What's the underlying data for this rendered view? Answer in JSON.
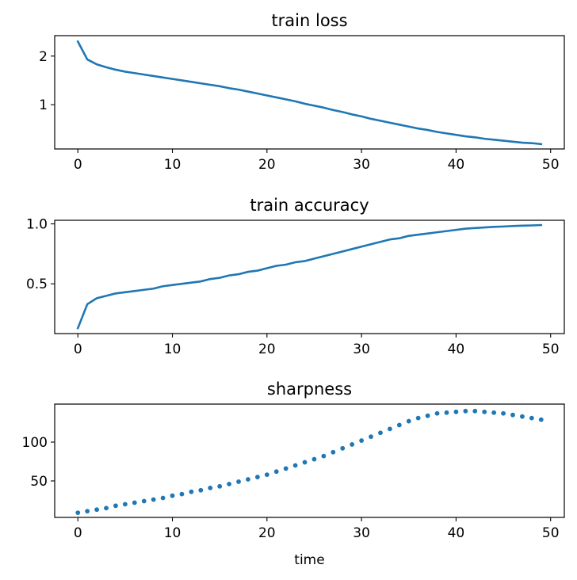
{
  "chart_data": [
    {
      "type": "line",
      "title": "train loss",
      "xlabel": "",
      "ylabel": "",
      "xlim": [
        -2.45,
        51.45
      ],
      "ylim": [
        0.09,
        2.42
      ],
      "xticks": [
        0,
        10,
        20,
        30,
        40,
        50
      ],
      "yticks": [
        1,
        2
      ],
      "grid": false,
      "color": "#1f77b4",
      "x": [
        0,
        1,
        2,
        3,
        4,
        5,
        6,
        7,
        8,
        9,
        10,
        11,
        12,
        13,
        14,
        15,
        16,
        17,
        18,
        19,
        20,
        21,
        22,
        23,
        24,
        25,
        26,
        27,
        28,
        29,
        30,
        31,
        32,
        33,
        34,
        35,
        36,
        37,
        38,
        39,
        40,
        41,
        42,
        43,
        44,
        45,
        46,
        47,
        48,
        49
      ],
      "y": [
        2.3,
        1.93,
        1.83,
        1.77,
        1.72,
        1.68,
        1.65,
        1.62,
        1.59,
        1.56,
        1.53,
        1.5,
        1.47,
        1.44,
        1.41,
        1.38,
        1.34,
        1.31,
        1.27,
        1.23,
        1.19,
        1.15,
        1.11,
        1.07,
        1.02,
        0.98,
        0.94,
        0.89,
        0.85,
        0.8,
        0.76,
        0.71,
        0.67,
        0.63,
        0.59,
        0.55,
        0.51,
        0.48,
        0.44,
        0.41,
        0.38,
        0.35,
        0.33,
        0.3,
        0.28,
        0.26,
        0.24,
        0.22,
        0.21,
        0.19
      ]
    },
    {
      "type": "line",
      "title": "train accuracy",
      "xlabel": "",
      "ylabel": "",
      "xlim": [
        -2.45,
        51.45
      ],
      "ylim": [
        0.085,
        1.03
      ],
      "xticks": [
        0,
        10,
        20,
        30,
        40,
        50
      ],
      "yticks": [
        0.5,
        1.0
      ],
      "yticklabels": [
        "0.5",
        "1.0"
      ],
      "grid": false,
      "color": "#1f77b4",
      "x": [
        0,
        1,
        2,
        3,
        4,
        5,
        6,
        7,
        8,
        9,
        10,
        11,
        12,
        13,
        14,
        15,
        16,
        17,
        18,
        19,
        20,
        21,
        22,
        23,
        24,
        25,
        26,
        27,
        28,
        29,
        30,
        31,
        32,
        33,
        34,
        35,
        36,
        37,
        38,
        39,
        40,
        41,
        42,
        43,
        44,
        45,
        46,
        47,
        48,
        49
      ],
      "y": [
        0.13,
        0.33,
        0.38,
        0.4,
        0.42,
        0.43,
        0.44,
        0.45,
        0.46,
        0.48,
        0.49,
        0.5,
        0.51,
        0.52,
        0.54,
        0.55,
        0.57,
        0.58,
        0.6,
        0.61,
        0.63,
        0.65,
        0.66,
        0.68,
        0.69,
        0.71,
        0.73,
        0.75,
        0.77,
        0.79,
        0.81,
        0.83,
        0.85,
        0.87,
        0.88,
        0.9,
        0.91,
        0.92,
        0.93,
        0.94,
        0.95,
        0.96,
        0.965,
        0.97,
        0.975,
        0.978,
        0.982,
        0.985,
        0.987,
        0.99
      ]
    },
    {
      "type": "scatter",
      "title": "sharpness",
      "xlabel": "time",
      "ylabel": "",
      "xlim": [
        -2.45,
        51.45
      ],
      "ylim": [
        3,
        149
      ],
      "xticks": [
        0,
        10,
        20,
        30,
        40,
        50
      ],
      "yticks": [
        50,
        100
      ],
      "grid": false,
      "color": "#1f77b4",
      "x": [
        0,
        1,
        2,
        3,
        4,
        5,
        6,
        7,
        8,
        9,
        10,
        11,
        12,
        13,
        14,
        15,
        16,
        17,
        18,
        19,
        20,
        21,
        22,
        23,
        24,
        25,
        26,
        27,
        28,
        29,
        30,
        31,
        32,
        33,
        34,
        35,
        36,
        37,
        38,
        39,
        40,
        41,
        42,
        43,
        44,
        45,
        46,
        47,
        48,
        49
      ],
      "y": [
        9,
        11,
        13,
        15,
        18,
        20,
        22,
        24,
        26,
        28,
        31,
        33,
        36,
        38,
        41,
        43,
        46,
        49,
        52,
        55,
        58,
        62,
        66,
        70,
        74,
        78,
        82,
        87,
        92,
        97,
        102,
        107,
        112,
        117,
        122,
        127,
        131,
        134,
        137,
        138,
        139,
        140,
        140,
        139,
        138,
        137,
        135,
        133,
        131,
        129
      ]
    }
  ]
}
